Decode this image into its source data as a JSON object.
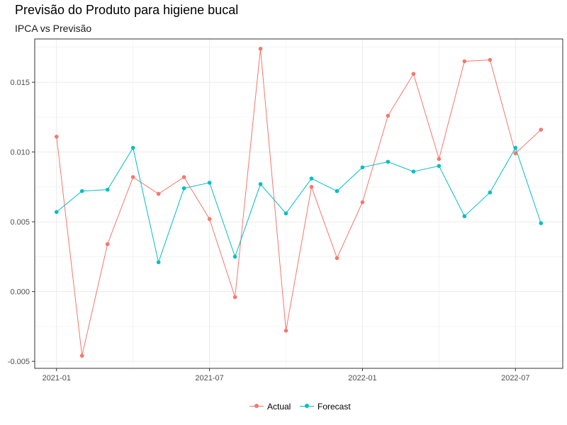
{
  "chart_data": {
    "type": "line",
    "title": "Previsão do Produto para higiene bucal",
    "subtitle": "IPCA vs Previsão",
    "xlabel": "",
    "ylabel": "",
    "x": [
      "2021-01",
      "2021-02",
      "2021-03",
      "2021-04",
      "2021-05",
      "2021-06",
      "2021-07",
      "2021-08",
      "2021-09",
      "2021-10",
      "2021-11",
      "2021-12",
      "2022-01",
      "2022-02",
      "2022-03",
      "2022-04",
      "2022-05",
      "2022-06",
      "2022-07",
      "2022-08"
    ],
    "x_ticks": [
      "2021-01",
      "2021-07",
      "2022-01",
      "2022-07"
    ],
    "y_ticks": [
      "-0.005",
      "0.000",
      "0.005",
      "0.010",
      "0.015"
    ],
    "ylim": [
      -0.0055,
      0.0181
    ],
    "grid": true,
    "legend_position": "bottom",
    "series": [
      {
        "name": "Actual",
        "color": "#F8766D",
        "values": [
          0.0111,
          -0.0046,
          0.0034,
          0.0082,
          0.007,
          0.0082,
          0.0052,
          -0.0004,
          0.0174,
          -0.0028,
          0.0075,
          0.0024,
          0.0064,
          0.0126,
          0.0156,
          0.0095,
          0.0165,
          0.0166,
          0.0099,
          0.0116
        ]
      },
      {
        "name": "Forecast",
        "color": "#00BFC4",
        "values": [
          0.0057,
          0.0072,
          0.0073,
          0.0103,
          0.0021,
          0.0074,
          0.0078,
          0.0025,
          0.0077,
          0.0056,
          0.0081,
          0.0072,
          0.0089,
          0.0093,
          0.0086,
          0.009,
          0.0054,
          0.0071,
          0.0103,
          0.0049
        ]
      }
    ]
  }
}
